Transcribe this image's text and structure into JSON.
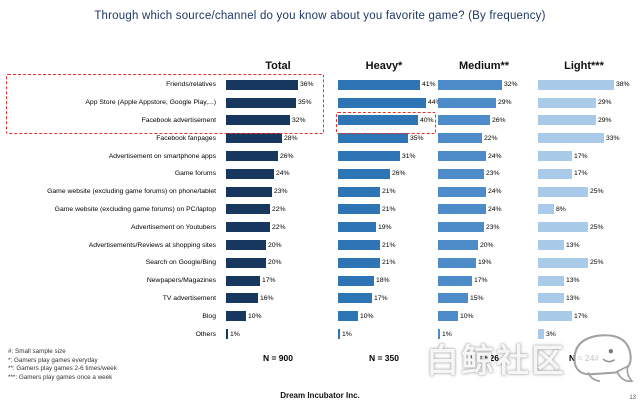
{
  "page": {
    "title": "Through which source/channel do you know about you favorite game? (By frequency)",
    "footer": "Dream Incubator Inc.",
    "page_number": "13",
    "watermark_text": "白鲸社区"
  },
  "footnotes": [
    "#: Small sample size",
    "*: Gamers play games everyday",
    "**: Gamers play games 2-6 times/week",
    "***: Gamers play games once a week"
  ],
  "chart_data": {
    "type": "bar",
    "orientation": "horizontal",
    "title": "Through which source/channel do you know about you favorite game? (By frequency)",
    "value_suffix": "%",
    "xlim": [
      0,
      50
    ],
    "grid": false,
    "legend_position": "column-headers-top",
    "categories": [
      "Friends/relatives",
      "App Store (Apple Appstore, Google Play,...)",
      "Facebook advertisement",
      "Facebook fanpages",
      "Advertisement on smartphone apps",
      "Game forums",
      "Game website (excluding game forums) on phone/tablet",
      "Game website (excluding game forums) on PC/laptop",
      "Advertisement on Youtubers",
      "Advertisements/Reviews at shopping sites",
      "Search on Google/Bing",
      "Newpapers/Magazines",
      "TV advertisement",
      "Blog",
      "Others"
    ],
    "series": [
      {
        "name": "Total",
        "n_label": "N = 900",
        "color": "#17375E",
        "values": [
          36,
          35,
          32,
          28,
          26,
          24,
          23,
          22,
          22,
          20,
          20,
          17,
          16,
          10,
          1
        ]
      },
      {
        "name": "Heavy*",
        "n_label": "N = 350",
        "color": "#2E75B6",
        "values": [
          41,
          44,
          40,
          35,
          31,
          26,
          21,
          21,
          19,
          21,
          21,
          18,
          17,
          10,
          1
        ]
      },
      {
        "name": "Medium**",
        "n_label": "N = 526",
        "color": "#4D8BC9",
        "values": [
          32,
          29,
          26,
          22,
          24,
          23,
          24,
          24,
          23,
          20,
          19,
          17,
          15,
          10,
          1
        ]
      },
      {
        "name": "Light***",
        "n_label": "N = 24#",
        "color": "#A9CBE9",
        "values": [
          38,
          29,
          29,
          33,
          17,
          17,
          25,
          8,
          25,
          13,
          25,
          13,
          13,
          17,
          3
        ]
      }
    ],
    "annotations": [
      "red dashed box highlighting top 3 categories (Friends/relatives, App Store, Facebook advertisement) in Total column",
      "red dashed box highlighting Heavy segment Facebook advertisement bar (40%)"
    ]
  }
}
